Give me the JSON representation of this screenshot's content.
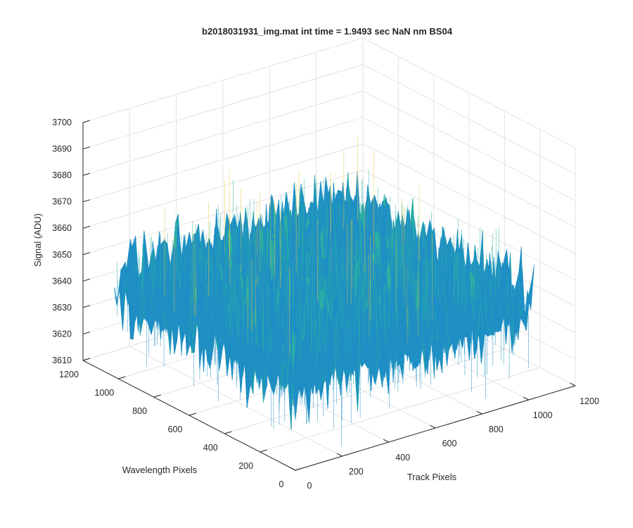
{
  "chart_data": {
    "type": "surface",
    "title": "b2018031931_img.mat int time = 1.9493 sec  NaN nm BS04",
    "xlabel": "Track Pixels",
    "ylabel": "Wavelength Pixels",
    "zlabel": "Signal (ADU)",
    "xlim": [
      0,
      1200
    ],
    "ylim": [
      0,
      1200
    ],
    "zlim": [
      3610,
      3700
    ],
    "xticks": [
      "0",
      "200",
      "400",
      "600",
      "800",
      "1000",
      "1200"
    ],
    "yticks": [
      "0",
      "200",
      "400",
      "600",
      "800",
      "1000",
      "1200"
    ],
    "zticks": [
      "3610",
      "3620",
      "3630",
      "3640",
      "3650",
      "3660",
      "3670",
      "3680",
      "3690",
      "3700"
    ],
    "grid": true,
    "colormap": "parula",
    "surface": {
      "x_range": [
        0,
        1024
      ],
      "y_range": [
        0,
        1024
      ],
      "mean_signal": 3645,
      "noise_peak_to_peak": 50,
      "min_approx": 3612,
      "max_approx": 3695
    },
    "colors": {
      "low": "#1f8fc4",
      "mid": "#2bb0a2",
      "high": "#e5c93a",
      "axis": "#262626",
      "grid": "#e3e3e3"
    }
  }
}
